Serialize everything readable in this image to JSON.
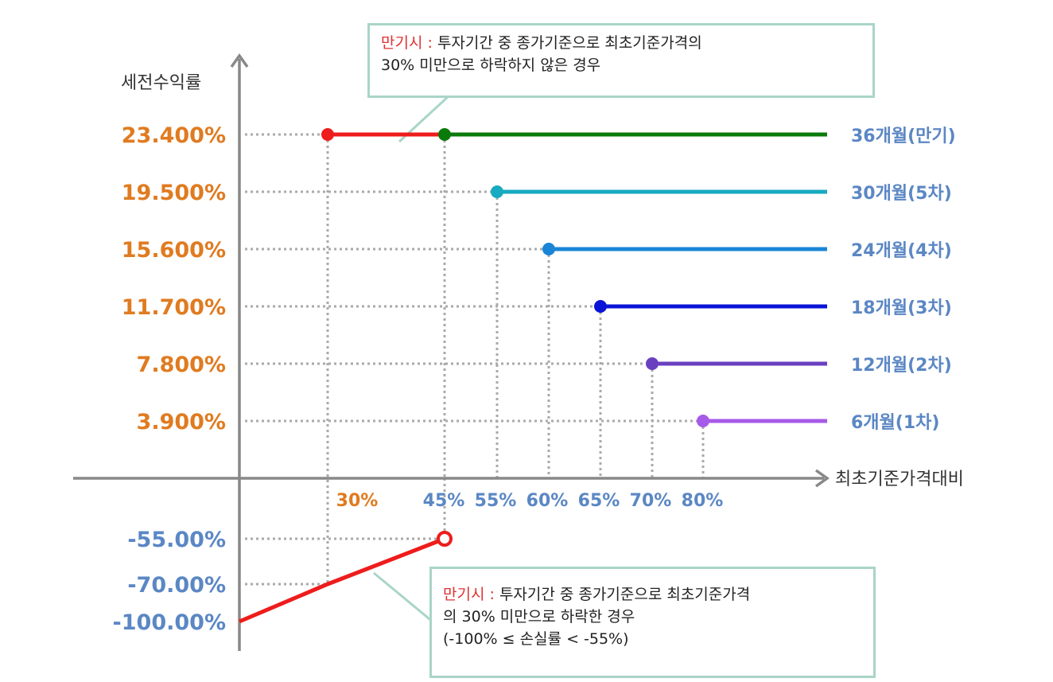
{
  "chart_data": {
    "type": "line",
    "ylabel": "세전수익률",
    "xlabel": "최초기준가격대비",
    "colors": {
      "y_label_positive": "#e07b20",
      "y_label_negative": "#5b87c4",
      "x_label_30": "#e07b20",
      "x_label_other": "#5b87c4",
      "series_label": "#5b87c4",
      "loss_line": "#ee1c1c",
      "axis": "#888888",
      "guide": "#aaaaaa"
    },
    "y_ticks": [
      {
        "label": "23.400%",
        "value": 23.4
      },
      {
        "label": "19.500%",
        "value": 19.5
      },
      {
        "label": "15.600%",
        "value": 15.6
      },
      {
        "label": "11.700%",
        "value": 11.7
      },
      {
        "label": "7.800%",
        "value": 7.8
      },
      {
        "label": "3.900%",
        "value": 3.9
      },
      {
        "label": "-55.00%",
        "value": -55
      },
      {
        "label": "-70.00%",
        "value": -70
      },
      {
        "label": "-100.00%",
        "value": -100
      }
    ],
    "x_ticks": [
      {
        "label": "30%",
        "value": 30
      },
      {
        "label": "45%",
        "value": 45
      },
      {
        "label": "55%",
        "value": 55
      },
      {
        "label": "60%",
        "value": 60
      },
      {
        "label": "65%",
        "value": 65
      },
      {
        "label": "70%",
        "value": 70
      },
      {
        "label": "80%",
        "value": 80
      }
    ],
    "series": [
      {
        "name": "36개월(만기)",
        "x_start": 45,
        "y": 23.4,
        "color": "#0a7a0a"
      },
      {
        "name": "30개월(5차)",
        "x_start": 55,
        "y": 19.5,
        "color": "#17aac0"
      },
      {
        "name": "24개월(4차)",
        "x_start": 60,
        "y": 15.6,
        "color": "#1a85d6"
      },
      {
        "name": "18개월(3차)",
        "x_start": 65,
        "y": 11.7,
        "color": "#0a14d6"
      },
      {
        "name": "12개월(2차)",
        "x_start": 70,
        "y": 7.8,
        "color": "#6a40c0"
      },
      {
        "name": "6개월(1차)",
        "x_start": 80,
        "y": 3.9,
        "color": "#a65ae8"
      }
    ],
    "maturity_no_knockin": {
      "x_start": 30,
      "x_end": 45,
      "y": 23.4
    },
    "loss_line": [
      {
        "x": 0,
        "y": -100
      },
      {
        "x": 30,
        "y": -70
      },
      {
        "x": 45,
        "y": -55
      }
    ],
    "annotations": [
      {
        "highlight": "만기시 :",
        "lines": [
          "투자기간 중 종가기준으로 최초기준가격의",
          "30% 미만으로 하락하지 않은 경우"
        ]
      },
      {
        "highlight": "만기시 :",
        "lines": [
          "투자기간 중 종가기준으로 최초기준가격",
          "의 30% 미만으로 하락한 경우",
          "(-100% ≤ 손실률 < -55%)"
        ]
      }
    ]
  }
}
